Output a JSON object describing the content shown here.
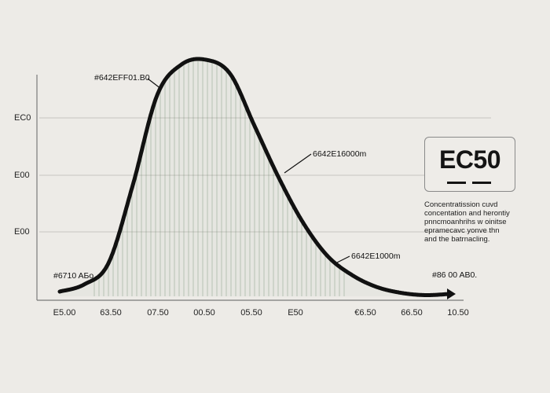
{
  "chart_data": {
    "type": "line",
    "title": "",
    "xlabel": "",
    "ylabel": "",
    "x_ticks": [
      "E5.00",
      "63.50",
      "07.50",
      "00.50",
      "05.50",
      "E50",
      "€6.50",
      "66.50",
      "10.50"
    ],
    "y_ticks": [
      "EC0",
      "E00",
      "E00"
    ],
    "grid": "horizontal",
    "series": [
      {
        "color": "#111111",
        "x": [
          0,
          0.5,
          1,
          1.5,
          2,
          2.5,
          3,
          3.5,
          4,
          4.5,
          5,
          5.5,
          6,
          6.5,
          7,
          7.5,
          8
        ],
        "y": [
          0.02,
          0.05,
          0.14,
          0.47,
          0.85,
          0.98,
          1.0,
          0.94,
          0.72,
          0.5,
          0.31,
          0.17,
          0.09,
          0.04,
          0.015,
          0.005,
          0.01
        ]
      }
    ],
    "fill_color": "#6f8f6f",
    "annotations": [
      {
        "text": "#642EFF01.B0",
        "at_x": 2.0
      },
      {
        "text": "6642E16000m",
        "at_x": 4.25
      },
      {
        "text": "6642E1000m",
        "at_x": 5.7
      },
      {
        "text": "#6710 AБo",
        "at_x": 0.0
      },
      {
        "text": "#86 00 AB0.",
        "at_x": 8.0
      }
    ]
  },
  "legend": {
    "title": "EC50"
  },
  "description": {
    "lines": [
      "Concentratission cuvd",
      "concentation and herontiy",
      "pnncmoanhrihs w oinitse",
      "epramecavc yonve thn",
      "and the batrnacling."
    ]
  }
}
